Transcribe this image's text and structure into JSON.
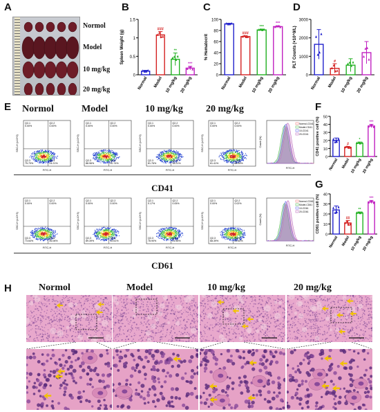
{
  "panel_labels": [
    "A",
    "B",
    "C",
    "D",
    "E",
    "F",
    "G",
    "H"
  ],
  "group_labels": [
    "Normol",
    "Model",
    "10 mg/kg",
    "20 mg/kg"
  ],
  "panel_a": {
    "rows": [
      "Normol",
      "Model",
      "10 mg/kg",
      "20 mg/kg"
    ]
  },
  "markers": {
    "cd41": "CD41",
    "cd61": "CD61"
  },
  "flow": {
    "axis_x": "FITC-H",
    "axis_y": "SSC-H (x10^3)",
    "quad_names": [
      "Q2-1",
      "Q2-2",
      "Q2-3",
      "Q2-4"
    ],
    "cd41": [
      {
        "q1": "0.00%",
        "q2": "0.00%",
        "q3": "75.79%",
        "q4": "24.21%"
      },
      {
        "q1": "0.00%",
        "q2": "0.00%",
        "q3": "88.96%",
        "q4": "10.74%"
      },
      {
        "q1": "0.00%",
        "q2": "0.00%",
        "q3": "81.76%",
        "q4": "18.21%"
      },
      {
        "q1": "0.00%",
        "q2": "0.00%",
        "q3": "61.41%",
        "q4": "38.59%"
      }
    ],
    "cd61": [
      {
        "q1": "0.00%",
        "q2": "0.00%",
        "q3": "73.64%",
        "q4": "26.06%"
      },
      {
        "q1": "0.00%",
        "q2": "0.00%",
        "q3": "89.39%",
        "q4": "10.61%"
      },
      {
        "q1": "0.17%",
        "q2": "0.05%",
        "q3": "78.90%",
        "q4": "21.55%"
      },
      {
        "q1": "0.00%",
        "q2": "0.02%",
        "q3": "68.39%",
        "q4": "31.60%"
      }
    ],
    "hist_legend_cd41": [
      "Normol-CD41",
      "Model-CD41",
      "10-CD41",
      "20-CD41"
    ],
    "hist_legend_cd61": [
      "Normol-CD61",
      "Model-CD61",
      "10-CD61",
      "20-CD61"
    ],
    "hist_ylabel": "Count (%)",
    "hist_xlabel": "FITC-H"
  },
  "colors": {
    "normal": "#1f1fcc",
    "model": "#d42020",
    "low": "#20b020",
    "high": "#c020c0",
    "arrow": "#f2c200"
  },
  "chart_data": [
    {
      "type": "bar",
      "ylabel": "Spleen Weight (g)",
      "ylim": [
        0,
        1.5
      ],
      "yticks": [
        0,
        0.5,
        1.0,
        1.5
      ],
      "categories": [
        "Normal",
        "Model",
        "10 mg/kg",
        "20 mg/kg"
      ],
      "values": [
        0.1,
        1.08,
        0.42,
        0.18
      ],
      "errors": [
        0.02,
        0.09,
        0.17,
        0.05
      ],
      "significance": [
        "",
        "###",
        "**",
        "***"
      ]
    },
    {
      "type": "bar",
      "ylabel": "% Hematocrit",
      "ylim": [
        0,
        100
      ],
      "yticks": [
        0,
        20,
        40,
        60,
        80,
        100
      ],
      "categories": [
        "Normal",
        "Model",
        "10 mg/kg",
        "20 mg/kg"
      ],
      "values": [
        92,
        69,
        81,
        87
      ],
      "errors": [
        1,
        1.5,
        1.5,
        1.5
      ],
      "significance": [
        "",
        "###",
        "***",
        "***"
      ]
    },
    {
      "type": "bar",
      "ylabel": "PLT Counts (×10^9/L)",
      "ylim": [
        0,
        3000
      ],
      "yticks": [
        0,
        1000,
        2000,
        3000
      ],
      "categories": [
        "Normal",
        "Model",
        "10 mg/kg",
        "20 mg/kg"
      ],
      "values": [
        1650,
        350,
        520,
        1200
      ],
      "errors": [
        800,
        250,
        350,
        600
      ],
      "significance": [
        "",
        "#",
        "",
        ""
      ]
    },
    {
      "type": "bar",
      "ylabel": "CD41 positive cell (%)",
      "ylim": [
        0,
        50
      ],
      "yticks": [
        0,
        10,
        20,
        30,
        40,
        50
      ],
      "categories": [
        "Normal",
        "Model",
        "10 mg/kg",
        "20 mg/kg"
      ],
      "values": [
        20,
        11.5,
        16.5,
        38
      ],
      "errors": [
        3,
        1,
        1.5,
        2
      ],
      "significance": [
        "",
        "#",
        "*",
        "***"
      ]
    },
    {
      "type": "bar",
      "ylabel": "CD61 positive cell (%)",
      "ylim": [
        0,
        40
      ],
      "yticks": [
        0,
        10,
        20,
        30,
        40
      ],
      "categories": [
        "Normal",
        "Model",
        "10 mg/kg",
        "20 mg/kg"
      ],
      "values": [
        24,
        11,
        21,
        32
      ],
      "errors": [
        4,
        2.5,
        1,
        1.5
      ],
      "significance": [
        "",
        "##",
        "**",
        "***"
      ]
    }
  ]
}
